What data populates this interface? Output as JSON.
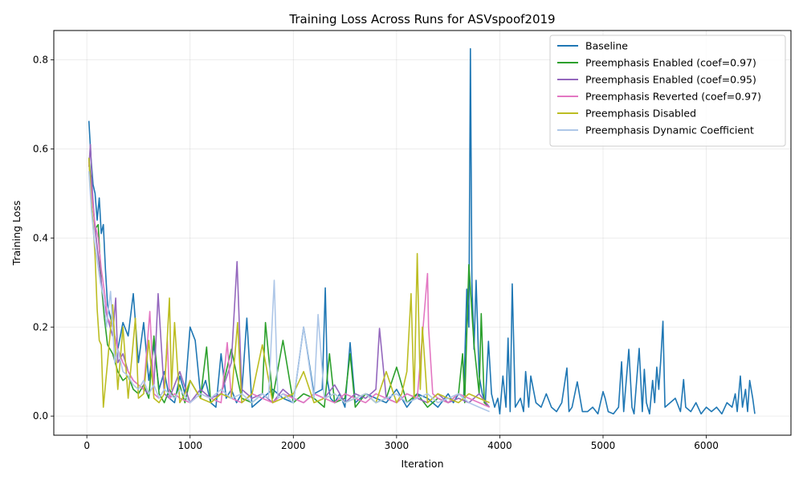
{
  "chart_data": {
    "type": "line",
    "title": "Training Loss Across Runs for ASVspoof2019",
    "xlabel": "Iteration",
    "ylabel": "Training Loss",
    "xlim": [
      -320,
      6820
    ],
    "ylim": [
      -0.043,
      0.866
    ],
    "xticks": [
      0,
      1000,
      2000,
      3000,
      4000,
      5000,
      6000
    ],
    "yticks": [
      0.0,
      0.2,
      0.4,
      0.6,
      0.8
    ],
    "grid": true,
    "legend_position": "top-right",
    "series": [
      {
        "name": "Baseline",
        "color": "#1f77b4",
        "x": [
          20,
          40,
          60,
          80,
          100,
          120,
          140,
          160,
          180,
          200,
          250,
          300,
          350,
          400,
          450,
          500,
          550,
          600,
          650,
          700,
          750,
          800,
          850,
          900,
          950,
          1000,
          1050,
          1100,
          1150,
          1200,
          1250,
          1300,
          1350,
          1400,
          1450,
          1500,
          1550,
          1600,
          1700,
          1800,
          1900,
          2000,
          2100,
          2200,
          2280,
          2310,
          2330,
          2360,
          2400,
          2450,
          2500,
          2550,
          2600,
          2700,
          2800,
          2900,
          3000,
          3100,
          3200,
          3300,
          3400,
          3500,
          3550,
          3600,
          3650,
          3680,
          3700,
          3715,
          3730,
          3750,
          3770,
          3800,
          3830,
          3860,
          3890,
          3920,
          3950,
          3980,
          4000,
          4030,
          4060,
          4080,
          4100,
          4120,
          4150,
          4200,
          4230,
          4250,
          4280,
          4300,
          4350,
          4400,
          4450,
          4500,
          4550,
          4600,
          4650,
          4670,
          4700,
          4750,
          4800,
          4850,
          4900,
          4950,
          5000,
          5020,
          5050,
          5100,
          5150,
          5180,
          5200,
          5250,
          5280,
          5300,
          5350,
          5380,
          5400,
          5420,
          5450,
          5480,
          5500,
          5520,
          5540,
          5560,
          5580,
          5600,
          5650,
          5700,
          5750,
          5780,
          5800,
          5850,
          5900,
          5950,
          6000,
          6050,
          6100,
          6150,
          6200,
          6250,
          6280,
          6300,
          6330,
          6350,
          6380,
          6400,
          6420,
          6450,
          6470
        ],
        "y": [
          0.663,
          0.58,
          0.52,
          0.5,
          0.44,
          0.49,
          0.41,
          0.43,
          0.33,
          0.25,
          0.2,
          0.15,
          0.21,
          0.18,
          0.275,
          0.12,
          0.21,
          0.08,
          0.16,
          0.06,
          0.1,
          0.04,
          0.03,
          0.09,
          0.05,
          0.2,
          0.17,
          0.05,
          0.08,
          0.03,
          0.02,
          0.14,
          0.04,
          0.06,
          0.03,
          0.05,
          0.22,
          0.02,
          0.04,
          0.06,
          0.04,
          0.03,
          0.2,
          0.05,
          0.06,
          0.288,
          0.08,
          0.04,
          0.03,
          0.05,
          0.02,
          0.165,
          0.03,
          0.05,
          0.04,
          0.03,
          0.06,
          0.02,
          0.05,
          0.04,
          0.02,
          0.05,
          0.03,
          0.05,
          0.04,
          0.285,
          0.2,
          0.825,
          0.3,
          0.15,
          0.305,
          0.09,
          0.05,
          0.03,
          0.168,
          0.05,
          0.02,
          0.04,
          0.005,
          0.09,
          0.02,
          0.175,
          0.01,
          0.297,
          0.02,
          0.04,
          0.01,
          0.1,
          0.02,
          0.09,
          0.03,
          0.02,
          0.05,
          0.02,
          0.01,
          0.03,
          0.108,
          0.01,
          0.02,
          0.077,
          0.01,
          0.01,
          0.02,
          0.005,
          0.055,
          0.04,
          0.01,
          0.005,
          0.02,
          0.122,
          0.01,
          0.15,
          0.02,
          0.005,
          0.152,
          0.01,
          0.105,
          0.03,
          0.005,
          0.08,
          0.03,
          0.11,
          0.06,
          0.13,
          0.213,
          0.02,
          0.03,
          0.04,
          0.01,
          0.082,
          0.02,
          0.01,
          0.03,
          0.005,
          0.02,
          0.01,
          0.02,
          0.005,
          0.03,
          0.02,
          0.05,
          0.01,
          0.09,
          0.02,
          0.06,
          0.01,
          0.08,
          0.04,
          0.005
        ]
      },
      {
        "name": "Preemphasis Enabled (coef=0.97)",
        "color": "#2ca02c",
        "x": [
          20,
          50,
          80,
          110,
          140,
          170,
          200,
          250,
          300,
          350,
          400,
          450,
          500,
          550,
          600,
          650,
          700,
          750,
          800,
          850,
          900,
          950,
          1000,
          1100,
          1160,
          1200,
          1300,
          1400,
          1500,
          1600,
          1700,
          1730,
          1800,
          1900,
          2000,
          2100,
          2200,
          2300,
          2350,
          2400,
          2500,
          2550,
          2600,
          2700,
          2800,
          2900,
          3000,
          3100,
          3200,
          3300,
          3400,
          3500,
          3600,
          3640,
          3660,
          3700,
          3750,
          3800,
          3820,
          3850,
          3900
        ],
        "y": [
          0.58,
          0.5,
          0.42,
          0.43,
          0.3,
          0.22,
          0.16,
          0.14,
          0.1,
          0.08,
          0.09,
          0.06,
          0.05,
          0.07,
          0.04,
          0.18,
          0.05,
          0.03,
          0.06,
          0.04,
          0.07,
          0.03,
          0.08,
          0.04,
          0.155,
          0.03,
          0.05,
          0.15,
          0.04,
          0.03,
          0.05,
          0.21,
          0.04,
          0.17,
          0.03,
          0.05,
          0.04,
          0.02,
          0.14,
          0.03,
          0.04,
          0.14,
          0.02,
          0.05,
          0.03,
          0.04,
          0.11,
          0.03,
          0.05,
          0.02,
          0.04,
          0.03,
          0.05,
          0.14,
          0.03,
          0.34,
          0.16,
          0.05,
          0.23,
          0.03,
          0.02
        ]
      },
      {
        "name": "Preemphasis Enabled (coef=0.95)",
        "color": "#9467bd",
        "x": [
          20,
          35,
          55,
          80,
          110,
          140,
          170,
          200,
          250,
          280,
          300,
          350,
          400,
          450,
          500,
          550,
          600,
          650,
          690,
          750,
          800,
          900,
          1000,
          1100,
          1200,
          1300,
          1400,
          1455,
          1500,
          1600,
          1700,
          1800,
          1900,
          2000,
          2100,
          2200,
          2300,
          2400,
          2500,
          2600,
          2700,
          2800,
          2835,
          2900,
          3000,
          3100,
          3200,
          3300,
          3400,
          3500,
          3600,
          3700,
          3800,
          3900
        ],
        "y": [
          0.56,
          0.61,
          0.5,
          0.42,
          0.36,
          0.3,
          0.25,
          0.22,
          0.18,
          0.265,
          0.12,
          0.14,
          0.1,
          0.08,
          0.07,
          0.06,
          0.05,
          0.07,
          0.275,
          0.05,
          0.04,
          0.1,
          0.03,
          0.06,
          0.04,
          0.05,
          0.12,
          0.347,
          0.06,
          0.04,
          0.05,
          0.03,
          0.06,
          0.04,
          0.03,
          0.05,
          0.04,
          0.07,
          0.03,
          0.05,
          0.04,
          0.06,
          0.197,
          0.04,
          0.03,
          0.05,
          0.04,
          0.03,
          0.05,
          0.03,
          0.04,
          0.03,
          0.05,
          0.02
        ]
      },
      {
        "name": "Preemphasis Reverted (coef=0.97)",
        "color": "#e377c2",
        "x": [
          20,
          50,
          80,
          110,
          140,
          170,
          200,
          250,
          300,
          350,
          400,
          450,
          500,
          550,
          610,
          650,
          700,
          750,
          780,
          800,
          850,
          900,
          1000,
          1100,
          1200,
          1300,
          1360,
          1400,
          1500,
          1600,
          1700,
          1800,
          1900,
          2000,
          2100,
          2200,
          2300,
          2400,
          2500,
          2600,
          2700,
          2800,
          2900,
          3000,
          3100,
          3200,
          3300,
          3310,
          3350,
          3400,
          3500,
          3600,
          3700,
          3800,
          3900
        ],
        "y": [
          0.57,
          0.49,
          0.43,
          0.4,
          0.33,
          0.28,
          0.22,
          0.2,
          0.15,
          0.12,
          0.1,
          0.08,
          0.07,
          0.06,
          0.235,
          0.05,
          0.04,
          0.06,
          0.17,
          0.04,
          0.05,
          0.04,
          0.03,
          0.05,
          0.04,
          0.03,
          0.165,
          0.04,
          0.03,
          0.05,
          0.04,
          0.03,
          0.05,
          0.04,
          0.03,
          0.05,
          0.04,
          0.03,
          0.05,
          0.04,
          0.03,
          0.05,
          0.04,
          0.03,
          0.05,
          0.04,
          0.32,
          0.2,
          0.05,
          0.04,
          0.03,
          0.05,
          0.04,
          0.03,
          0.02
        ]
      },
      {
        "name": "Preemphasis Disabled",
        "color": "#bcbd22",
        "x": [
          20,
          40,
          60,
          80,
          100,
          120,
          140,
          160,
          200,
          250,
          300,
          350,
          400,
          470,
          500,
          550,
          600,
          650,
          700,
          750,
          800,
          820,
          850,
          900,
          950,
          1000,
          1100,
          1200,
          1300,
          1400,
          1460,
          1500,
          1600,
          1700,
          1800,
          1900,
          2000,
          2100,
          2200,
          2300,
          2400,
          2500,
          2600,
          2700,
          2800,
          2900,
          3000,
          3050,
          3100,
          3140,
          3170,
          3200,
          3230,
          3250,
          3300,
          3400,
          3500,
          3600,
          3700,
          3800,
          3900
        ],
        "y": [
          0.58,
          0.49,
          0.43,
          0.36,
          0.24,
          0.17,
          0.16,
          0.02,
          0.12,
          0.25,
          0.06,
          0.2,
          0.04,
          0.22,
          0.04,
          0.05,
          0.17,
          0.04,
          0.03,
          0.05,
          0.265,
          0.06,
          0.21,
          0.03,
          0.05,
          0.08,
          0.04,
          0.03,
          0.05,
          0.04,
          0.21,
          0.03,
          0.05,
          0.16,
          0.03,
          0.04,
          0.05,
          0.1,
          0.03,
          0.04,
          0.05,
          0.03,
          0.04,
          0.05,
          0.03,
          0.1,
          0.03,
          0.05,
          0.1,
          0.275,
          0.04,
          0.365,
          0.06,
          0.2,
          0.03,
          0.05,
          0.04,
          0.03,
          0.05,
          0.04,
          0.03
        ]
      },
      {
        "name": "Preemphasis Dynamic Coefficient",
        "color": "#aec7e8",
        "x": [
          20,
          45,
          70,
          100,
          130,
          160,
          190,
          230,
          270,
          300,
          350,
          400,
          450,
          500,
          550,
          600,
          650,
          700,
          750,
          800,
          850,
          900,
          1000,
          1100,
          1200,
          1300,
          1400,
          1500,
          1600,
          1700,
          1760,
          1815,
          1850,
          1900,
          2000,
          2100,
          2200,
          2240,
          2300,
          2400,
          2500,
          2600,
          2700,
          2800,
          2900,
          3000,
          3100,
          3200,
          3300,
          3400,
          3500,
          3600,
          3700,
          3800,
          3900
        ],
        "y": [
          0.55,
          0.46,
          0.4,
          0.35,
          0.3,
          0.27,
          0.2,
          0.28,
          0.12,
          0.15,
          0.1,
          0.09,
          0.07,
          0.06,
          0.08,
          0.05,
          0.07,
          0.04,
          0.06,
          0.05,
          0.04,
          0.06,
          0.03,
          0.05,
          0.04,
          0.06,
          0.04,
          0.05,
          0.03,
          0.05,
          0.04,
          0.305,
          0.04,
          0.05,
          0.03,
          0.2,
          0.04,
          0.228,
          0.04,
          0.05,
          0.03,
          0.04,
          0.05,
          0.03,
          0.04,
          0.05,
          0.03,
          0.04,
          0.05,
          0.03,
          0.04,
          0.05,
          0.03,
          0.02,
          0.01
        ]
      }
    ]
  }
}
